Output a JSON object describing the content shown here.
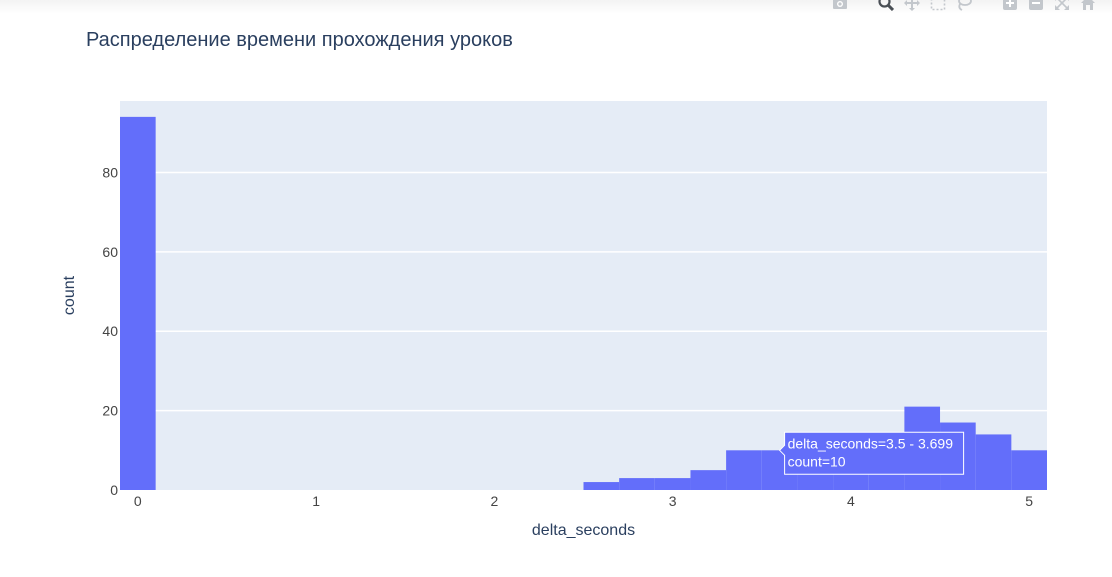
{
  "modebar": {
    "icons": [
      "camera-icon",
      "zoom-icon",
      "pan-icon",
      "box-select-icon",
      "lasso-icon",
      "zoom-in-icon",
      "zoom-out-icon",
      "autoscale-icon",
      "home-icon"
    ]
  },
  "chart_data": {
    "type": "bar",
    "title": "Распределение времени прохождения уроков",
    "xlabel": "delta_seconds",
    "ylabel": "count",
    "xlim": [
      -0.1,
      5.1
    ],
    "ylim": [
      0,
      98
    ],
    "xticks": [
      0,
      1,
      2,
      3,
      4,
      5
    ],
    "yticks": [
      0,
      20,
      40,
      60,
      80
    ],
    "bin_width": 0.2,
    "bins": [
      {
        "start": -0.1,
        "end": 0.099,
        "count": 94
      },
      {
        "start": 2.5,
        "end": 2.699,
        "count": 2
      },
      {
        "start": 2.7,
        "end": 2.899,
        "count": 3
      },
      {
        "start": 2.9,
        "end": 3.099,
        "count": 3
      },
      {
        "start": 3.1,
        "end": 3.299,
        "count": 5
      },
      {
        "start": 3.3,
        "end": 3.499,
        "count": 10
      },
      {
        "start": 3.5,
        "end": 3.699,
        "count": 10
      },
      {
        "start": 3.7,
        "end": 3.899,
        "count": 10
      },
      {
        "start": 3.9,
        "end": 4.099,
        "count": 10
      },
      {
        "start": 4.1,
        "end": 4.299,
        "count": 10
      },
      {
        "start": 4.3,
        "end": 4.499,
        "count": 21
      },
      {
        "start": 4.5,
        "end": 4.699,
        "count": 17
      },
      {
        "start": 4.7,
        "end": 4.899,
        "count": 14
      },
      {
        "start": 4.9,
        "end": 5.099,
        "count": 10
      }
    ],
    "bar_color": "#636efa",
    "plot_bgcolor": "#e5ecf6",
    "grid": true,
    "hover": {
      "bin_index": 6,
      "line1": "delta_seconds=3.5 - 3.699",
      "line2": "count=10"
    }
  }
}
